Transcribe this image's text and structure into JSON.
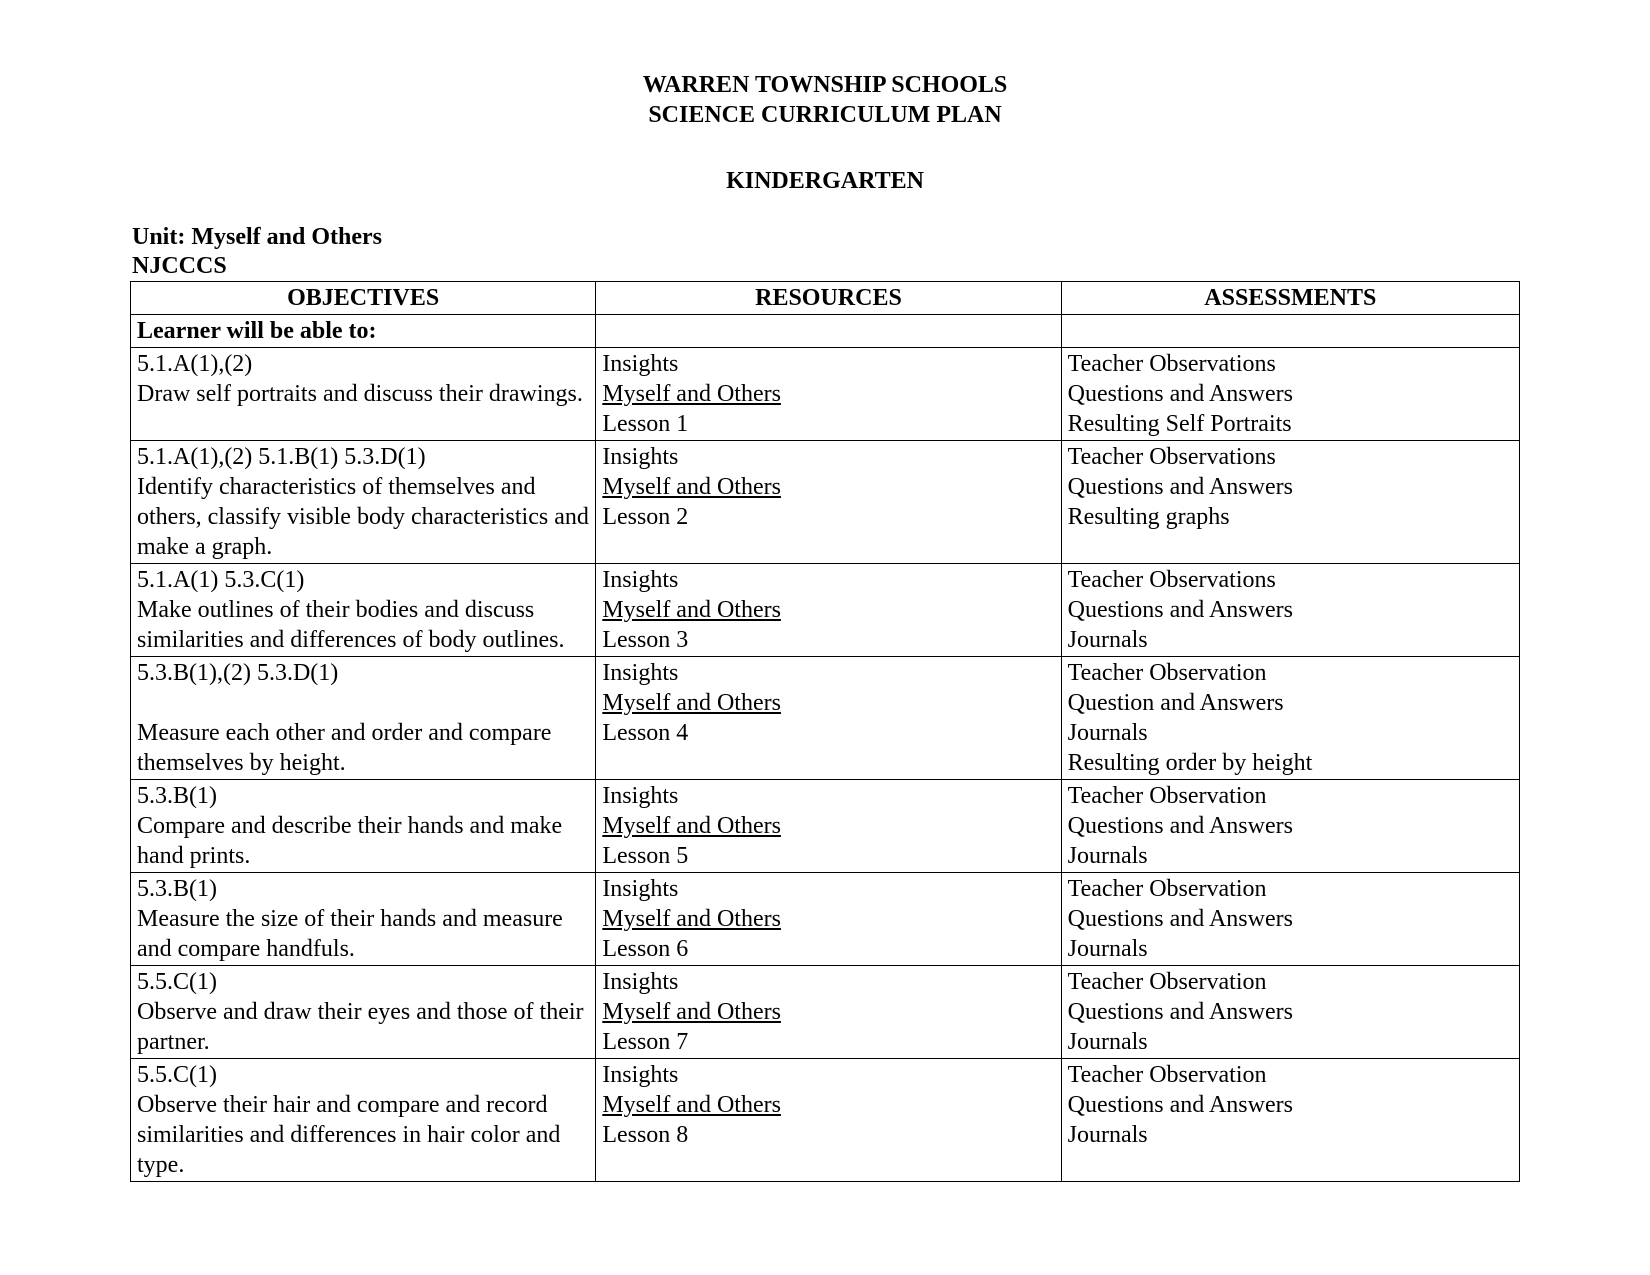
{
  "header": {
    "line1": "WARREN TOWNSHIP SCHOOLS",
    "line2": "SCIENCE CURRICULUM PLAN",
    "grade": "KINDERGARTEN",
    "unit_label": "Unit:  Myself and Others",
    "standards_label": "NJCCCS"
  },
  "table": {
    "columns": {
      "objectives": "OBJECTIVES",
      "resources": "RESOURCES",
      "assessments": "ASSESSMENTS"
    },
    "subhead": "Learner will be able to:",
    "rows": [
      {
        "obj_code": "5.1.A(1),(2)",
        "obj_text": "Draw self portraits and discuss their drawings.",
        "res_line1": "Insights",
        "res_line2": "Myself and Others",
        "res_line3": "Lesson 1",
        "ass": [
          "Teacher Observations",
          "Questions and Answers",
          "Resulting Self Portraits"
        ]
      },
      {
        "obj_code": "5.1.A(1),(2)   5.1.B(1)   5.3.D(1)",
        "obj_text": "Identify characteristics of themselves and others, classify visible body characteristics and make a graph.",
        "res_line1": "Insights",
        "res_line2": "Myself and Others",
        "res_line3": "Lesson 2",
        "ass": [
          "Teacher Observations",
          "Questions and Answers",
          "Resulting graphs"
        ]
      },
      {
        "obj_code": "5.1.A(1)    5.3.C(1)",
        "obj_text": "Make outlines of their bodies and discuss similarities and differences of body outlines.",
        "res_line1": "Insights",
        "res_line2": "Myself and Others",
        "res_line3": "Lesson 3",
        "ass": [
          "Teacher Observations",
          "Questions and Answers",
          "Journals"
        ]
      },
      {
        "obj_code": "5.3.B(1),(2)   5.3.D(1)",
        "obj_text_pre": "",
        "obj_text": "Measure each other and order and compare themselves by height.",
        "res_line1": "Insights",
        "res_line2": "Myself and Others",
        "res_line3": "Lesson 4",
        "ass": [
          "Teacher Observation",
          "Question and Answers",
          "Journals",
          "Resulting order by height"
        ],
        "extra_blank_after_code": true
      },
      {
        "obj_code": "5.3.B(1)",
        "obj_text": "Compare and describe their hands and make hand prints.",
        "res_line1": "Insights",
        "res_line2": "Myself and Others",
        "res_line3": "Lesson 5",
        "ass": [
          "Teacher Observation",
          "Questions and Answers",
          "Journals"
        ]
      },
      {
        "obj_code": "5.3.B(1)",
        "obj_text": "Measure the size of their hands and measure and compare handfuls.",
        "res_line1": "Insights",
        "res_line2": "Myself and Others",
        "res_line3": "Lesson 6",
        "ass": [
          "Teacher Observation",
          "Questions and Answers",
          "Journals"
        ]
      },
      {
        "obj_code": "5.5.C(1)",
        "obj_text": "Observe and draw their eyes and those of their partner.",
        "res_line1": "Insights",
        "res_line2": "Myself and Others",
        "res_line3": "Lesson 7",
        "ass": [
          "Teacher Observation",
          "Questions and Answers",
          "Journals"
        ]
      },
      {
        "obj_code": "5.5.C(1)",
        "obj_text": "Observe their hair and compare and record similarities and differences in hair color and type.",
        "res_line1": "Insights",
        "res_line2": "Myself and Others",
        "res_line3": "Lesson 8",
        "ass": [
          "Teacher Observation",
          "Questions and Answers",
          "Journals"
        ]
      }
    ]
  }
}
